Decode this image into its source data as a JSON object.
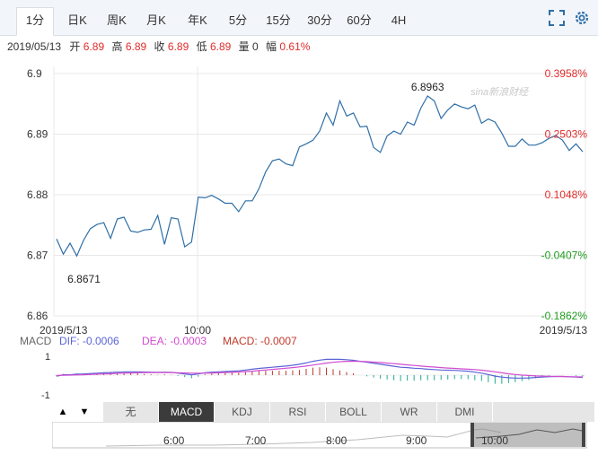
{
  "tabs": [
    {
      "label": "1分",
      "active": true
    },
    {
      "label": "日K"
    },
    {
      "label": "周K"
    },
    {
      "label": "月K"
    },
    {
      "label": "年K"
    },
    {
      "label": "5分"
    },
    {
      "label": "15分"
    },
    {
      "label": "30分"
    },
    {
      "label": "60分"
    },
    {
      "label": "4H"
    }
  ],
  "toolbar": {
    "fullscreen_icon": "fullscreen-icon",
    "settings_icon": "gear-icon"
  },
  "info": {
    "date": "2019/05/13",
    "open_label": "开",
    "open": "6.89",
    "high_label": "高",
    "high": "6.89",
    "close_label": "收",
    "close": "6.89",
    "low_label": "低",
    "low": "6.89",
    "volume_label": "量",
    "volume": "0",
    "change_label": "幅",
    "change": "0.61%"
  },
  "colors": {
    "price_line": "#2f6fa7",
    "up": "#e12b2b",
    "down": "#1f9c1f",
    "dif": "#5b64d6",
    "dea": "#d14bd1",
    "grid": "#e8e8e8",
    "macd_label": "#c0392b"
  },
  "chart_data": [
    {
      "type": "line",
      "title": "",
      "x_start_label": "2019/5/13",
      "x_mid_label": "10:00",
      "x_end_label": "2019/5/13",
      "ylim": [
        6.86,
        6.9
      ],
      "y_ticks": [
        "6.9",
        "6.89",
        "6.88",
        "6.87",
        "6.86"
      ],
      "right_ticks": [
        {
          "label": "0.3958%",
          "sign": "up"
        },
        {
          "label": "0.2503%",
          "sign": "up"
        },
        {
          "label": "0.1048%",
          "sign": "up"
        },
        {
          "label": "-0.0407%",
          "sign": "down"
        },
        {
          "label": "-0.1862%",
          "sign": "down"
        }
      ],
      "annotations": {
        "max_label": "6.8963",
        "min_label": "6.8671"
      },
      "watermark": "sina新浪财经",
      "grid": true,
      "series": [
        {
          "values": [
            6.8727,
            6.8702,
            6.872,
            6.8699,
            6.8725,
            6.8744,
            6.8751,
            6.8754,
            6.8728,
            6.876,
            6.8763,
            6.874,
            6.8738,
            6.8742,
            6.8743,
            6.8766,
            6.8718,
            6.8762,
            6.876,
            6.8714,
            6.8722,
            6.8796,
            6.8795,
            6.8799,
            6.8793,
            6.8786,
            6.8786,
            6.8772,
            6.879,
            6.879,
            6.881,
            6.8838,
            6.8856,
            6.8859,
            6.8851,
            6.8848,
            6.8879,
            6.8884,
            6.889,
            6.8905,
            6.8935,
            6.8915,
            6.8955,
            6.893,
            6.8935,
            6.8912,
            6.8913,
            6.8878,
            6.887,
            6.8897,
            6.8905,
            6.89,
            6.892,
            6.8915,
            6.8943,
            6.8963,
            6.8955,
            6.8926,
            6.894,
            6.895,
            6.8945,
            6.8942,
            6.8948,
            6.8918,
            6.8925,
            6.892,
            6.8902,
            6.888,
            6.888,
            6.8892,
            6.8882,
            6.8882,
            6.8886,
            6.8893,
            6.8898,
            6.889,
            6.8873,
            6.8884,
            6.8871
          ]
        }
      ]
    },
    {
      "type": "bar",
      "title": "MACD",
      "labels": {
        "name": "MACD",
        "dif": "DIF: -0.0006",
        "dea": "DEA: -0.0003",
        "macd": "MACD: -0.0007"
      },
      "ylim": [
        -1,
        1
      ],
      "y_ticks": [
        "1",
        "-1"
      ],
      "series": [
        {
          "name": "DIF",
          "values": [
            -0.05,
            0.02,
            0.02,
            0.05,
            0.06,
            0.08,
            0.1,
            0.12,
            0.13,
            0.15,
            0.16,
            0.17,
            0.17,
            0.16,
            0.15,
            0.14,
            0.15,
            0.14,
            0.1,
            0.06,
            0.02,
            0.06,
            0.12,
            0.15,
            0.17,
            0.18,
            0.2,
            0.22,
            0.26,
            0.3,
            0.34,
            0.37,
            0.4,
            0.43,
            0.46,
            0.5,
            0.55,
            0.62,
            0.7,
            0.76,
            0.8,
            0.8,
            0.8,
            0.78,
            0.75,
            0.7,
            0.65,
            0.6,
            0.55,
            0.5,
            0.45,
            0.4,
            0.38,
            0.35,
            0.33,
            0.3,
            0.28,
            0.26,
            0.25,
            0.24,
            0.22,
            0.2,
            0.15,
            0.1,
            0.03,
            -0.05,
            -0.1,
            -0.13,
            -0.15,
            -0.15,
            -0.14,
            -0.12,
            -0.1,
            -0.08,
            -0.07,
            -0.07,
            -0.08,
            -0.1,
            -0.12
          ]
        },
        {
          "name": "DEA",
          "values": [
            -0.02,
            -0.01,
            0.0,
            0.01,
            0.02,
            0.03,
            0.05,
            0.06,
            0.07,
            0.09,
            0.1,
            0.11,
            0.12,
            0.13,
            0.13,
            0.13,
            0.13,
            0.13,
            0.12,
            0.11,
            0.1,
            0.1,
            0.1,
            0.11,
            0.12,
            0.13,
            0.14,
            0.16,
            0.18,
            0.2,
            0.23,
            0.26,
            0.29,
            0.32,
            0.35,
            0.38,
            0.42,
            0.46,
            0.51,
            0.56,
            0.61,
            0.65,
            0.68,
            0.7,
            0.7,
            0.7,
            0.68,
            0.66,
            0.64,
            0.61,
            0.58,
            0.55,
            0.52,
            0.49,
            0.46,
            0.43,
            0.41,
            0.38,
            0.36,
            0.34,
            0.32,
            0.3,
            0.28,
            0.25,
            0.21,
            0.17,
            0.12,
            0.07,
            0.03,
            0.0,
            -0.02,
            -0.04,
            -0.05,
            -0.06,
            -0.07,
            -0.07,
            -0.08,
            -0.08,
            -0.09
          ]
        }
      ]
    }
  ],
  "indicators": {
    "up_arrow": "▲",
    "down_arrow": "▼",
    "tabs": [
      {
        "label": "无"
      },
      {
        "label": "MACD",
        "active": true
      },
      {
        "label": "KDJ"
      },
      {
        "label": "RSI"
      },
      {
        "label": "BOLL"
      },
      {
        "label": "WR"
      },
      {
        "label": "DMI"
      }
    ]
  },
  "navigator": {
    "times": [
      "6:00",
      "7:00",
      "8:00",
      "9:00",
      "10:00"
    ]
  }
}
